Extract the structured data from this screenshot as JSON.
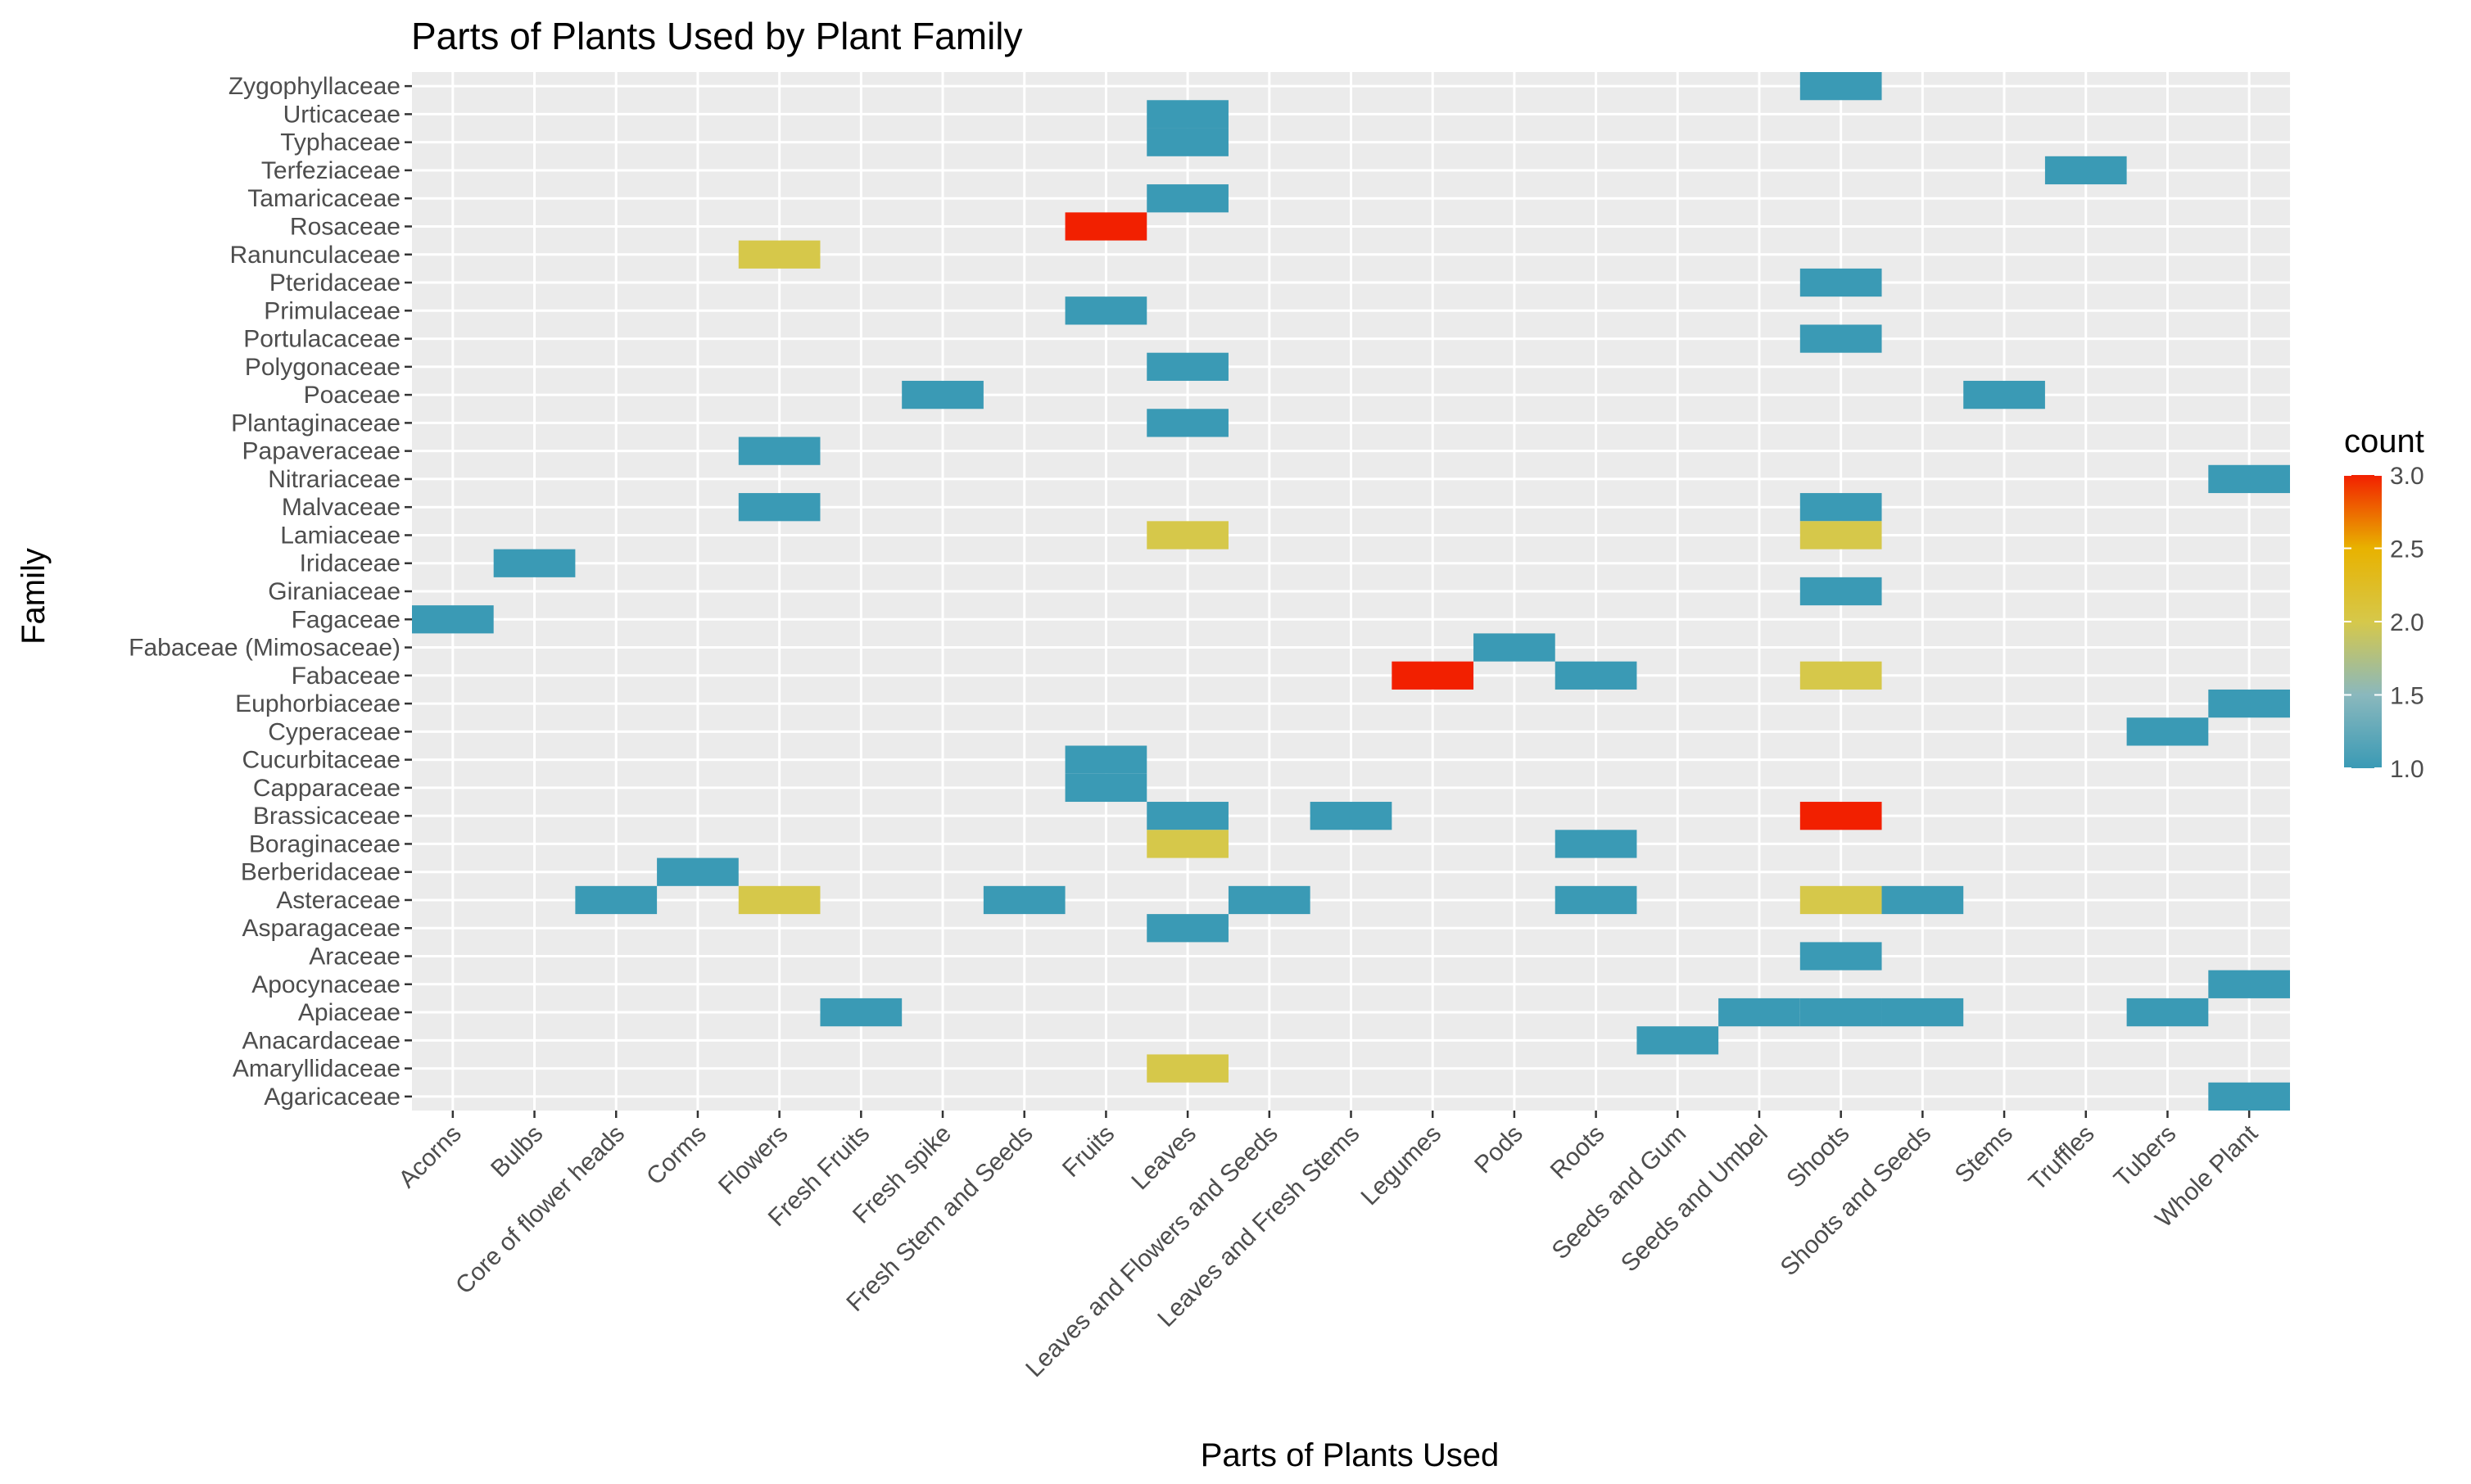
{
  "chart_data": {
    "type": "heatmap",
    "title": "Parts of Plants Used by Plant Family",
    "xlabel": "Parts of Plants Used",
    "ylabel": "Family",
    "x_categories": [
      "Acorns",
      "Bulbs",
      "Core of flower heads",
      "Corms",
      "Flowers",
      "Fresh Fruits",
      "Fresh spike",
      "Fresh Stem and Seeds",
      "Fruits",
      "Leaves",
      "Leaves and Flowers and Seeds",
      "Leaves and Fresh Stems",
      "Legumes",
      "Pods",
      "Roots",
      "Seeds and Gum",
      "Seeds and Umbel",
      "Shoots",
      "Shoots and Seeds",
      "Stems",
      "Truffles",
      "Tubers",
      "Whole Plant"
    ],
    "y_categories": [
      "Agaricaceae",
      "Amaryllidaceae",
      "Anacardaceae",
      "Apiaceae",
      "Apocynaceae",
      "Araceae",
      "Asparagaceae",
      "Asteraceae",
      "Berberidaceae",
      "Boraginaceae",
      "Brassicaceae",
      "Capparaceae",
      "Cucurbitaceae",
      "Cyperaceae",
      "Euphorbiaceae",
      "Fabaceae",
      "Fabaceae (Mimosaceae)",
      "Fagaceae",
      "Giraniaceae",
      "Iridaceae",
      "Lamiaceae",
      "Malvaceae",
      "Nitrariaceae",
      "Papaveraceae",
      "Plantaginaceae",
      "Poaceae",
      "Polygonaceae",
      "Portulacaceae",
      "Primulaceae",
      "Pteridaceae",
      "Ranunculaceae",
      "Rosaceae",
      "Tamaricaceae",
      "Terfeziaceae",
      "Typhaceae",
      "Urticaceae",
      "Zygophyllaceae"
    ],
    "cells": [
      {
        "x": "Shoots",
        "y": "Zygophyllaceae",
        "count": 1
      },
      {
        "x": "Leaves",
        "y": "Urticaceae",
        "count": 1
      },
      {
        "x": "Leaves",
        "y": "Typhaceae",
        "count": 1
      },
      {
        "x": "Truffles",
        "y": "Terfeziaceae",
        "count": 1
      },
      {
        "x": "Leaves",
        "y": "Tamaricaceae",
        "count": 1
      },
      {
        "x": "Fruits",
        "y": "Rosaceae",
        "count": 3
      },
      {
        "x": "Flowers",
        "y": "Ranunculaceae",
        "count": 2
      },
      {
        "x": "Shoots",
        "y": "Pteridaceae",
        "count": 1
      },
      {
        "x": "Fruits",
        "y": "Primulaceae",
        "count": 1
      },
      {
        "x": "Shoots",
        "y": "Portulacaceae",
        "count": 1
      },
      {
        "x": "Leaves",
        "y": "Polygonaceae",
        "count": 1
      },
      {
        "x": "Fresh spike",
        "y": "Poaceae",
        "count": 1
      },
      {
        "x": "Stems",
        "y": "Poaceae",
        "count": 1
      },
      {
        "x": "Leaves",
        "y": "Plantaginaceae",
        "count": 1
      },
      {
        "x": "Flowers",
        "y": "Papaveraceae",
        "count": 1
      },
      {
        "x": "Whole Plant",
        "y": "Nitrariaceae",
        "count": 1
      },
      {
        "x": "Flowers",
        "y": "Malvaceae",
        "count": 1
      },
      {
        "x": "Shoots",
        "y": "Malvaceae",
        "count": 1
      },
      {
        "x": "Leaves",
        "y": "Lamiaceae",
        "count": 2
      },
      {
        "x": "Shoots",
        "y": "Lamiaceae",
        "count": 2
      },
      {
        "x": "Bulbs",
        "y": "Iridaceae",
        "count": 1
      },
      {
        "x": "Shoots",
        "y": "Giraniaceae",
        "count": 1
      },
      {
        "x": "Acorns",
        "y": "Fagaceae",
        "count": 1
      },
      {
        "x": "Pods",
        "y": "Fabaceae (Mimosaceae)",
        "count": 1
      },
      {
        "x": "Legumes",
        "y": "Fabaceae",
        "count": 3
      },
      {
        "x": "Roots",
        "y": "Fabaceae",
        "count": 1
      },
      {
        "x": "Shoots",
        "y": "Fabaceae",
        "count": 2
      },
      {
        "x": "Whole Plant",
        "y": "Euphorbiaceae",
        "count": 1
      },
      {
        "x": "Tubers",
        "y": "Cyperaceae",
        "count": 1
      },
      {
        "x": "Fruits",
        "y": "Cucurbitaceae",
        "count": 1
      },
      {
        "x": "Fruits",
        "y": "Capparaceae",
        "count": 1
      },
      {
        "x": "Leaves",
        "y": "Brassicaceae",
        "count": 1
      },
      {
        "x": "Leaves and Fresh Stems",
        "y": "Brassicaceae",
        "count": 1
      },
      {
        "x": "Shoots",
        "y": "Brassicaceae",
        "count": 3
      },
      {
        "x": "Leaves",
        "y": "Boraginaceae",
        "count": 2
      },
      {
        "x": "Roots",
        "y": "Boraginaceae",
        "count": 1
      },
      {
        "x": "Corms",
        "y": "Berberidaceae",
        "count": 1
      },
      {
        "x": "Core of flower heads",
        "y": "Asteraceae",
        "count": 1
      },
      {
        "x": "Flowers",
        "y": "Asteraceae",
        "count": 2
      },
      {
        "x": "Fresh Stem and Seeds",
        "y": "Asteraceae",
        "count": 1
      },
      {
        "x": "Leaves and Flowers and Seeds",
        "y": "Asteraceae",
        "count": 1
      },
      {
        "x": "Roots",
        "y": "Asteraceae",
        "count": 1
      },
      {
        "x": "Shoots",
        "y": "Asteraceae",
        "count": 2
      },
      {
        "x": "Shoots and Seeds",
        "y": "Asteraceae",
        "count": 1
      },
      {
        "x": "Leaves",
        "y": "Asparagaceae",
        "count": 1
      },
      {
        "x": "Shoots",
        "y": "Araceae",
        "count": 1
      },
      {
        "x": "Whole Plant",
        "y": "Apocynaceae",
        "count": 1
      },
      {
        "x": "Fresh Fruits",
        "y": "Apiaceae",
        "count": 1
      },
      {
        "x": "Seeds and Umbel",
        "y": "Apiaceae",
        "count": 1
      },
      {
        "x": "Shoots",
        "y": "Apiaceae",
        "count": 1
      },
      {
        "x": "Shoots and Seeds",
        "y": "Apiaceae",
        "count": 1
      },
      {
        "x": "Tubers",
        "y": "Apiaceae",
        "count": 1
      },
      {
        "x": "Seeds and Gum",
        "y": "Anacardaceae",
        "count": 1
      },
      {
        "x": "Leaves",
        "y": "Amaryllidaceae",
        "count": 2
      },
      {
        "x": "Whole Plant",
        "y": "Agaricaceae",
        "count": 1
      }
    ],
    "legend": {
      "title": "count",
      "min": 1.0,
      "max": 3.0,
      "ticks": [
        "1.0",
        "1.5",
        "2.0",
        "2.5",
        "3.0"
      ],
      "placement": "right",
      "colors": [
        "#3a9ab5",
        "#8ab8bd",
        "#d6c84a",
        "#e8b200",
        "#f22000"
      ]
    },
    "panel_background": "#ebebeb",
    "grid_color": "#ffffff",
    "grid": true
  }
}
